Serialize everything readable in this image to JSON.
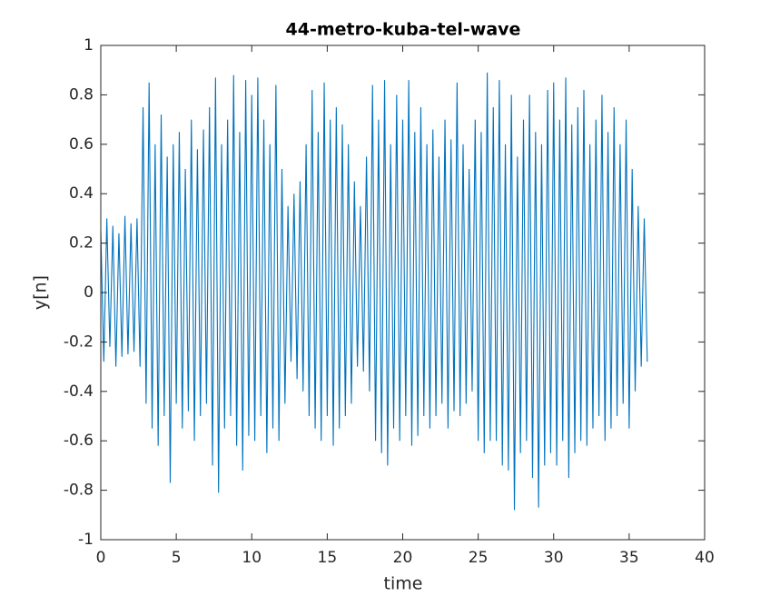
{
  "chart_data": {
    "type": "line",
    "title": "44-metro-kuba-tel-wave",
    "xlabel": "time",
    "ylabel": "y[n]",
    "xlim": [
      0,
      40
    ],
    "xticks": [
      0,
      5,
      10,
      15,
      20,
      25,
      30,
      35,
      40
    ],
    "ylim": [
      -1,
      1
    ],
    "yticks": [
      -1,
      -0.8,
      -0.6,
      -0.4,
      -0.2,
      0,
      0.2,
      0.4,
      0.6,
      0.8,
      1
    ],
    "color": "#0072bd",
    "grid": false,
    "x": [
      0,
      0.2,
      0.4,
      0.6,
      0.8,
      1,
      1.2,
      1.4,
      1.6,
      1.8,
      2,
      2.2,
      2.4,
      2.6,
      2.8,
      3,
      3.2,
      3.4,
      3.6,
      3.8,
      4,
      4.2,
      4.4,
      4.6,
      4.8,
      5,
      5.2,
      5.4,
      5.6,
      5.8,
      6,
      6.2,
      6.4,
      6.6,
      6.8,
      7,
      7.2,
      7.4,
      7.6,
      7.8,
      8,
      8.2,
      8.4,
      8.6,
      8.8,
      9,
      9.2,
      9.4,
      9.6,
      9.8,
      10,
      10.2,
      10.4,
      10.6,
      10.8,
      11,
      11.2,
      11.4,
      11.6,
      11.8,
      12,
      12.2,
      12.4,
      12.6,
      12.8,
      13,
      13.2,
      13.4,
      13.6,
      13.8,
      14,
      14.2,
      14.4,
      14.6,
      14.8,
      15,
      15.2,
      15.4,
      15.6,
      15.8,
      16,
      16.2,
      16.4,
      16.6,
      16.8,
      17,
      17.2,
      17.4,
      17.6,
      17.8,
      18,
      18.2,
      18.4,
      18.6,
      18.8,
      19,
      19.2,
      19.4,
      19.6,
      19.8,
      20,
      20.2,
      20.4,
      20.6,
      20.8,
      21,
      21.2,
      21.4,
      21.6,
      21.8,
      22,
      22.2,
      22.4,
      22.6,
      22.8,
      23,
      23.2,
      23.4,
      23.6,
      23.8,
      24,
      24.2,
      24.4,
      24.6,
      24.8,
      25,
      25.2,
      25.4,
      25.6,
      25.8,
      26,
      26.2,
      26.4,
      26.6,
      26.8,
      27,
      27.2,
      27.4,
      27.6,
      27.8,
      28,
      28.2,
      28.4,
      28.6,
      28.8,
      29,
      29.2,
      29.4,
      29.6,
      29.8,
      30,
      30.2,
      30.4,
      30.6,
      30.8,
      31,
      31.2,
      31.4,
      31.6,
      31.8,
      32,
      32.2,
      32.4,
      32.6,
      32.8,
      33,
      33.2,
      33.4,
      33.6,
      33.8,
      34,
      34.2,
      34.4,
      34.6,
      34.8,
      35,
      35.2,
      35.4,
      35.6,
      35.8,
      36,
      36.2
    ],
    "values": [
      0.25,
      -0.28,
      0.3,
      -0.22,
      0.27,
      -0.3,
      0.24,
      -0.26,
      0.31,
      -0.25,
      0.28,
      -0.24,
      0.3,
      -0.3,
      0.75,
      -0.45,
      0.85,
      -0.55,
      0.6,
      -0.62,
      0.72,
      -0.5,
      0.55,
      -0.77,
      0.6,
      -0.45,
      0.65,
      -0.55,
      0.5,
      -0.48,
      0.7,
      -0.6,
      0.58,
      -0.5,
      0.66,
      -0.45,
      0.75,
      -0.7,
      0.87,
      -0.81,
      0.6,
      -0.55,
      0.7,
      -0.5,
      0.88,
      -0.62,
      0.65,
      -0.72,
      0.86,
      -0.58,
      0.8,
      -0.6,
      0.87,
      -0.5,
      0.7,
      -0.65,
      0.6,
      -0.55,
      0.84,
      -0.6,
      0.5,
      -0.45,
      0.35,
      -0.28,
      0.4,
      -0.35,
      0.45,
      -0.4,
      0.6,
      -0.5,
      0.82,
      -0.55,
      0.65,
      -0.6,
      0.85,
      -0.5,
      0.7,
      -0.62,
      0.75,
      -0.55,
      0.68,
      -0.5,
      0.6,
      -0.45,
      0.45,
      -0.3,
      0.35,
      -0.32,
      0.55,
      -0.4,
      0.84,
      -0.6,
      0.7,
      -0.65,
      0.86,
      -0.7,
      0.6,
      -0.55,
      0.8,
      -0.6,
      0.7,
      -0.5,
      0.86,
      -0.62,
      0.65,
      -0.58,
      0.75,
      -0.5,
      0.6,
      -0.55,
      0.66,
      -0.5,
      0.55,
      -0.45,
      0.7,
      -0.55,
      0.62,
      -0.48,
      0.85,
      -0.5,
      0.6,
      -0.45,
      0.5,
      -0.4,
      0.7,
      -0.6,
      0.65,
      -0.65,
      0.89,
      -0.6,
      0.75,
      -0.6,
      0.86,
      -0.7,
      0.6,
      -0.72,
      0.8,
      -0.88,
      0.55,
      -0.65,
      0.7,
      -0.6,
      0.8,
      -0.75,
      0.65,
      -0.87,
      0.6,
      -0.7,
      0.82,
      -0.65,
      0.85,
      -0.7,
      0.7,
      -0.6,
      0.87,
      -0.75,
      0.68,
      -0.65,
      0.75,
      -0.6,
      0.82,
      -0.62,
      0.6,
      -0.55,
      0.7,
      -0.5,
      0.8,
      -0.6,
      0.65,
      -0.55,
      0.75,
      -0.5,
      0.6,
      -0.45,
      0.7,
      -0.55,
      0.5,
      -0.4,
      0.35,
      -0.3,
      0.3,
      -0.28
    ]
  }
}
